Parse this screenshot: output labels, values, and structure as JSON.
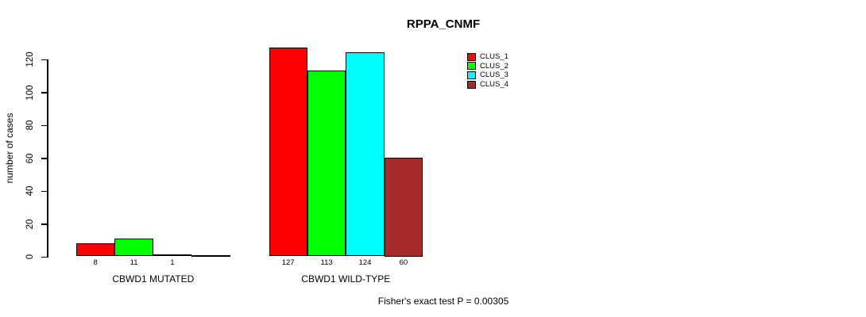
{
  "chart_data": {
    "type": "bar",
    "title": "RPPA_CNMF",
    "categories": [
      "CBWD1 MUTATED",
      "CBWD1 WILD-TYPE"
    ],
    "series": [
      {
        "name": "CLUS_1",
        "color": "#FF0000",
        "values": [
          8,
          127
        ]
      },
      {
        "name": "CLUS_2",
        "color": "#00FF00",
        "values": [
          11,
          113
        ]
      },
      {
        "name": "CLUS_3",
        "color": "#00FFFF",
        "values": [
          1,
          124
        ]
      },
      {
        "name": "CLUS_4",
        "color": "#A52A2A",
        "values": [
          0,
          60
        ]
      }
    ],
    "bar_value_labels": [
      [
        "8",
        "11",
        "1",
        ""
      ],
      [
        "127",
        "113",
        "124",
        "60"
      ]
    ],
    "xlabel": "",
    "ylabel": "number of cases",
    "y_ticks": [
      0,
      20,
      40,
      60,
      80,
      100,
      120
    ],
    "ylim": [
      0,
      130
    ],
    "grid": false,
    "legend_position": "top-right",
    "annotation": "Fisher's exact test P = 0.00305"
  }
}
